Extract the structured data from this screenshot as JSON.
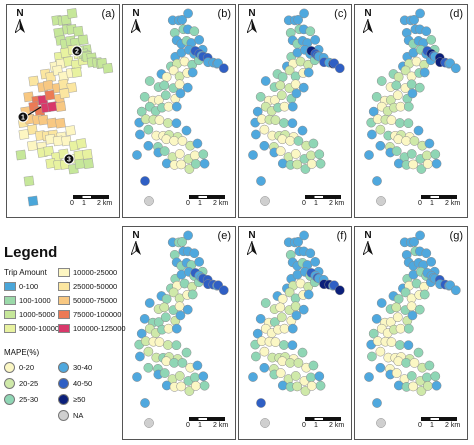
{
  "panels": [
    {
      "id": "a",
      "label": "(a)",
      "kind": "grid"
    },
    {
      "id": "b",
      "label": "(b)",
      "kind": "dots",
      "seed": 11
    },
    {
      "id": "c",
      "label": "(c)",
      "kind": "dots",
      "seed": 23
    },
    {
      "id": "d",
      "label": "(d)",
      "kind": "dots",
      "seed": 37
    },
    {
      "id": "e",
      "label": "(e)",
      "kind": "dots",
      "seed": 41
    },
    {
      "id": "f",
      "label": "(f)",
      "kind": "dots",
      "seed": 53
    },
    {
      "id": "g",
      "label": "(g)",
      "kind": "dots",
      "seed": 67
    }
  ],
  "north_label": "N",
  "scale": {
    "ticks": [
      "0",
      "1",
      "2 km"
    ]
  },
  "markers": [
    "1",
    "2",
    "3"
  ],
  "legend": {
    "title": "Legend",
    "trip_title": "Trip Amount",
    "trip_classes": [
      {
        "label": "0-100",
        "color": "#4aa6d9"
      },
      {
        "label": "100-1000",
        "color": "#9bd9a9"
      },
      {
        "label": "1000-5000",
        "color": "#c6e79a"
      },
      {
        "label": "5000-10000",
        "color": "#e8f2a0"
      },
      {
        "label": "10000-25000",
        "color": "#fdf6c2"
      },
      {
        "label": "25000-50000",
        "color": "#fbe6a0"
      },
      {
        "label": "50000-75000",
        "color": "#f8c882"
      },
      {
        "label": "75000-100000",
        "color": "#ec7a55"
      },
      {
        "label": "100000-125000",
        "color": "#d8386a"
      }
    ],
    "mape_title": "MAPE(%)",
    "mape_classes": [
      {
        "label": "0-20",
        "color": "#fbf7c4"
      },
      {
        "label": "20-25",
        "color": "#cfe9a9"
      },
      {
        "label": "25-30",
        "color": "#8fd6b5"
      },
      {
        "label": "30-40",
        "color": "#4fa8de"
      },
      {
        "label": "40-50",
        "color": "#2f5fc4"
      },
      {
        "label": "≥50",
        "color": "#0b1f7a"
      },
      {
        "label": "NA",
        "color": "#cfcfcf"
      }
    ]
  }
}
